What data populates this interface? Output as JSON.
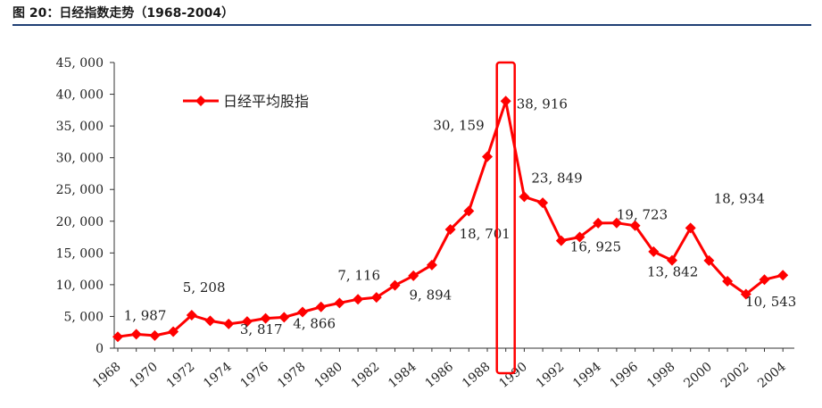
{
  "header": {
    "title": "图 20：日经指数走势（1968-2004）"
  },
  "colors": {
    "series": "#ff0000",
    "rule": "#1f3f74",
    "axis": "#333333"
  },
  "chart_data": {
    "type": "line",
    "title": "",
    "xlabel": "",
    "ylabel": "",
    "ylim": [
      0,
      45000
    ],
    "yticks": [
      0,
      5000,
      10000,
      15000,
      20000,
      25000,
      30000,
      35000,
      40000,
      45000
    ],
    "ytick_labels": [
      "0",
      "5, 000",
      "10, 000",
      "15, 000",
      "20, 000",
      "25, 000",
      "30, 000",
      "35, 000",
      "40, 000",
      "45, 000"
    ],
    "xticks": [
      "1968",
      "1970",
      "1972",
      "1974",
      "1976",
      "1978",
      "1980",
      "1982",
      "1984",
      "1986",
      "1988",
      "1990",
      "1992",
      "1994",
      "1996",
      "1998",
      "2000",
      "2002",
      "2004"
    ],
    "legend": {
      "position": "upper-left"
    },
    "grid": false,
    "series": [
      {
        "name": "日经平均股指",
        "x": [
          1968,
          1969,
          1970,
          1971,
          1972,
          1973,
          1974,
          1975,
          1976,
          1977,
          1978,
          1979,
          1980,
          1981,
          1982,
          1983,
          1984,
          1985,
          1986,
          1987,
          1988,
          1989,
          1990,
          1991,
          1992,
          1993,
          1994,
          1995,
          1996,
          1997,
          1998,
          1999,
          2000,
          2001,
          2002,
          2003,
          2004
        ],
        "values": [
          1800,
          2200,
          1987,
          2600,
          5208,
          4300,
          3817,
          4200,
          4700,
          4866,
          5700,
          6500,
          7116,
          7700,
          8000,
          9894,
          11400,
          13100,
          18701,
          21600,
          30159,
          38916,
          23849,
          22900,
          16925,
          17500,
          19700,
          19723,
          19300,
          15200,
          13842,
          18934,
          13800,
          10543,
          8500,
          10800,
          11500
        ]
      }
    ],
    "annotations": [
      {
        "x": 1969,
        "text": "1, 987"
      },
      {
        "x": 1972,
        "text": "5, 208"
      },
      {
        "x": 1975,
        "text": "3, 817"
      },
      {
        "x": 1977,
        "text": "4, 866"
      },
      {
        "x": 1980,
        "text": "7, 116"
      },
      {
        "x": 1983,
        "text": "9, 894"
      },
      {
        "x": 1986,
        "text": "18, 701"
      },
      {
        "x": 1988,
        "text": "30, 159"
      },
      {
        "x": 1989,
        "text": "38, 916"
      },
      {
        "x": 1990,
        "text": "23, 849"
      },
      {
        "x": 1992,
        "text": "16, 925"
      },
      {
        "x": 1995,
        "text": "19, 723"
      },
      {
        "x": 1998,
        "text": "13, 842"
      },
      {
        "x": 1999,
        "text": "18, 934"
      },
      {
        "x": 2001,
        "text": "10, 543"
      }
    ],
    "highlight": {
      "x": 1989
    }
  }
}
